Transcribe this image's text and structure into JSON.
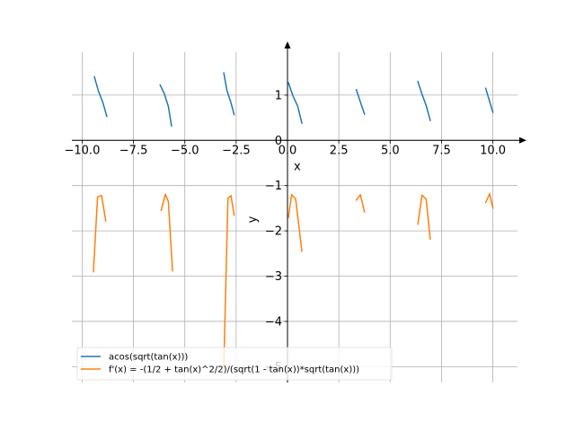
{
  "chart_data": {
    "type": "line",
    "xlabel": "x",
    "ylabel": "y",
    "xlim": [
      -10.5,
      11.2
    ],
    "ylim": [
      -5.35,
      1.95
    ],
    "xticks": [
      -10,
      -7.5,
      -5,
      -2.5,
      0,
      2.5,
      5,
      7.5,
      10
    ],
    "xtick_labels": [
      "−10.0",
      "−7.5",
      "−5.0",
      "−2.5",
      "0.0",
      "2.5",
      "5.0",
      "7.5",
      "10.0"
    ],
    "yticks": [
      -5,
      -4,
      -3,
      -2,
      -1,
      0,
      1
    ],
    "ytick_labels": [
      "−5",
      "−4",
      "−3",
      "−2",
      "−1",
      "0",
      "1"
    ],
    "grid": true,
    "legend_position": "lower-left",
    "colors": {
      "series1": "#1f77b4",
      "series2": "#ff7f0e",
      "grid": "#b0b0b0",
      "axis": "#000000"
    },
    "series": [
      {
        "name": "acos(sqrt(tan(x)))",
        "segments": [
          [
            [
              -9.4,
              1.4
            ],
            [
              -9.2,
              1.08
            ],
            [
              -9.0,
              0.85
            ],
            [
              -8.8,
              0.53
            ]
          ],
          [
            [
              -6.2,
              1.22
            ],
            [
              -6.0,
              1.03
            ],
            [
              -5.8,
              0.75
            ],
            [
              -5.65,
              0.32
            ]
          ],
          [
            [
              -3.1,
              1.49
            ],
            [
              -2.95,
              1.1
            ],
            [
              -2.75,
              0.83
            ],
            [
              -2.6,
              0.57
            ]
          ],
          [
            [
              0.05,
              1.27
            ],
            [
              0.25,
              1.0
            ],
            [
              0.5,
              0.75
            ],
            [
              0.7,
              0.38
            ]
          ],
          [
            [
              3.35,
              1.12
            ],
            [
              3.55,
              0.85
            ],
            [
              3.75,
              0.58
            ]
          ],
          [
            [
              6.35,
              1.3
            ],
            [
              6.55,
              1.02
            ],
            [
              6.75,
              0.77
            ],
            [
              6.95,
              0.44
            ]
          ],
          [
            [
              9.65,
              1.15
            ],
            [
              9.85,
              0.85
            ],
            [
              10.0,
              0.62
            ]
          ]
        ]
      },
      {
        "name": "f'(x) = -(1/2 + tan(x)^2/2)/(sqrt(1 - tan(x))*sqrt(tan(x)))",
        "segments": [
          [
            [
              -9.45,
              -2.9
            ],
            [
              -9.25,
              -1.25
            ],
            [
              -9.05,
              -1.22
            ],
            [
              -8.85,
              -1.78
            ]
          ],
          [
            [
              -6.15,
              -1.55
            ],
            [
              -5.95,
              -1.19
            ],
            [
              -5.8,
              -1.35
            ],
            [
              -5.6,
              -2.88
            ]
          ],
          [
            [
              -3.1,
              -5.0
            ],
            [
              -2.9,
              -1.28
            ],
            [
              -2.75,
              -1.22
            ],
            [
              -2.6,
              -1.65
            ]
          ],
          [
            [
              0.05,
              -1.7
            ],
            [
              0.2,
              -1.2
            ],
            [
              0.4,
              -1.3
            ],
            [
              0.7,
              -2.45
            ]
          ],
          [
            [
              3.35,
              -1.32
            ],
            [
              3.55,
              -1.2
            ],
            [
              3.75,
              -1.58
            ]
          ],
          [
            [
              6.35,
              -1.85
            ],
            [
              6.55,
              -1.21
            ],
            [
              6.75,
              -1.3
            ],
            [
              6.95,
              -2.18
            ]
          ],
          [
            [
              9.65,
              -1.37
            ],
            [
              9.85,
              -1.18
            ],
            [
              10.0,
              -1.5
            ]
          ]
        ]
      }
    ]
  }
}
